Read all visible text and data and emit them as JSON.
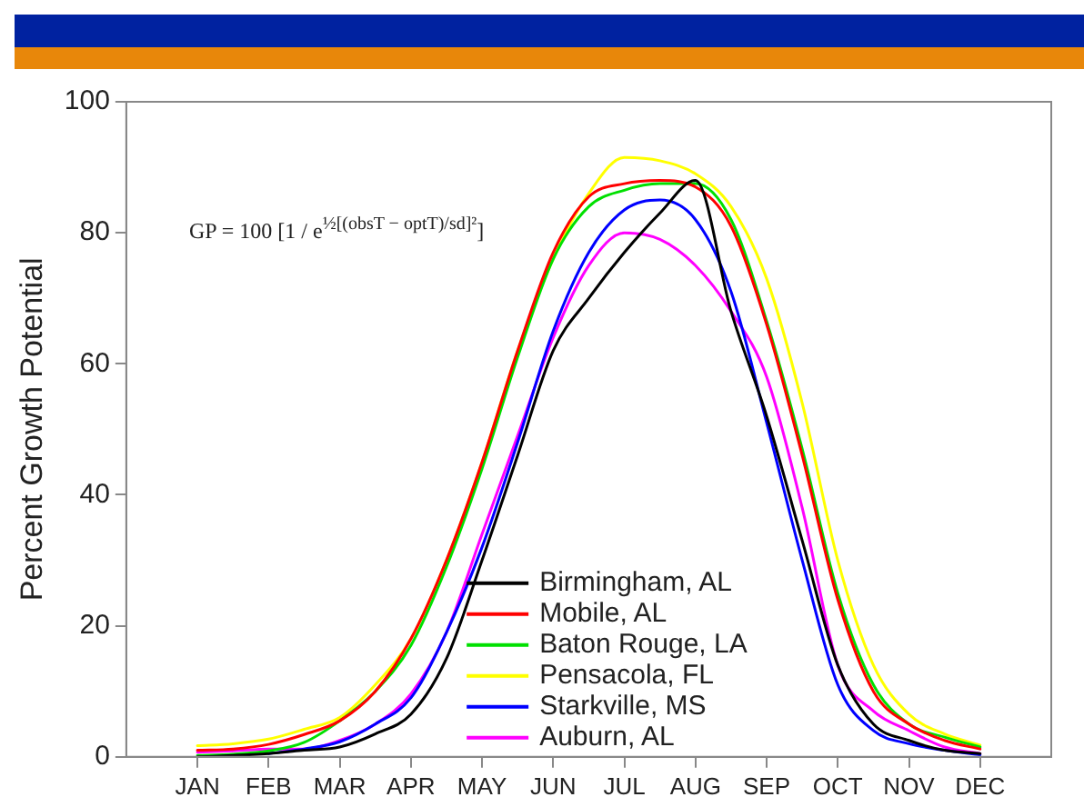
{
  "chart_data": {
    "type": "line",
    "ylabel": "Percent Growth Potential",
    "annotations": [
      "GP = 100 [1 / e$^{½[(obsT − optT)/sd]²}$]"
    ],
    "categories": [
      "JAN",
      null,
      "FEB",
      null,
      "MAR",
      null,
      "APR",
      null,
      "MAY",
      null,
      "JUN",
      null,
      "JUL",
      null,
      "AUG",
      null,
      "SEP",
      null,
      "OCT",
      null,
      "NOV",
      null,
      "DEC"
    ],
    "ylim": [
      0,
      100
    ],
    "yticks": [
      0,
      20,
      40,
      60,
      80,
      100
    ],
    "grid": false,
    "legend": "bottom",
    "marker": "none",
    "line_style": "solid",
    "series": [
      {
        "name": "Birmingham, AL",
        "color": "#000000",
        "values": [
          0,
          0.2,
          0.5,
          1,
          1.5,
          3.5,
          6.5,
          15,
          30,
          46,
          62,
          70,
          77,
          83,
          88,
          68,
          52,
          33,
          14,
          5,
          2.5,
          1,
          0.5
        ]
      },
      {
        "name": "Mobile, AL",
        "color": "#ff0000",
        "values": [
          1,
          1.2,
          1.9,
          3.4,
          5.5,
          10,
          18,
          30,
          45,
          62,
          77,
          85.5,
          87.5,
          88,
          87,
          81,
          66,
          46,
          24,
          10,
          5,
          2.5,
          1.2
        ]
      },
      {
        "name": "Baton Rouge, LA",
        "color": "#00e000",
        "values": [
          0.2,
          0.4,
          0.9,
          2.2,
          5.5,
          10,
          17,
          29,
          44,
          61,
          76,
          84,
          86.5,
          87.5,
          87.5,
          82,
          66.5,
          47,
          25,
          11,
          5,
          3,
          1.5
        ]
      },
      {
        "name": "Pensacola, FL",
        "color": "#ffff00",
        "values": [
          1.7,
          2,
          2.7,
          4.2,
          6,
          11,
          18,
          30,
          45,
          62,
          76,
          86,
          91.5,
          91,
          89,
          84,
          73,
          54,
          30,
          14,
          6.5,
          3.5,
          1.8
        ]
      },
      {
        "name": "Starkville, MS",
        "color": "#0000ff",
        "values": [
          null,
          null,
          0.5,
          1.2,
          2.3,
          5,
          9,
          19,
          32,
          48,
          65,
          77,
          83.5,
          85,
          82,
          71,
          51,
          30,
          11,
          4,
          2,
          1,
          0.3
        ]
      },
      {
        "name": "Auburn, AL",
        "color": "#ff00ff",
        "values": [
          0.7,
          0.9,
          1.2,
          1.2,
          2.5,
          5,
          9.6,
          19,
          34,
          49,
          64,
          75,
          80,
          79,
          75,
          68,
          58,
          38,
          14,
          7,
          4,
          1.5,
          0.5
        ]
      }
    ]
  }
}
